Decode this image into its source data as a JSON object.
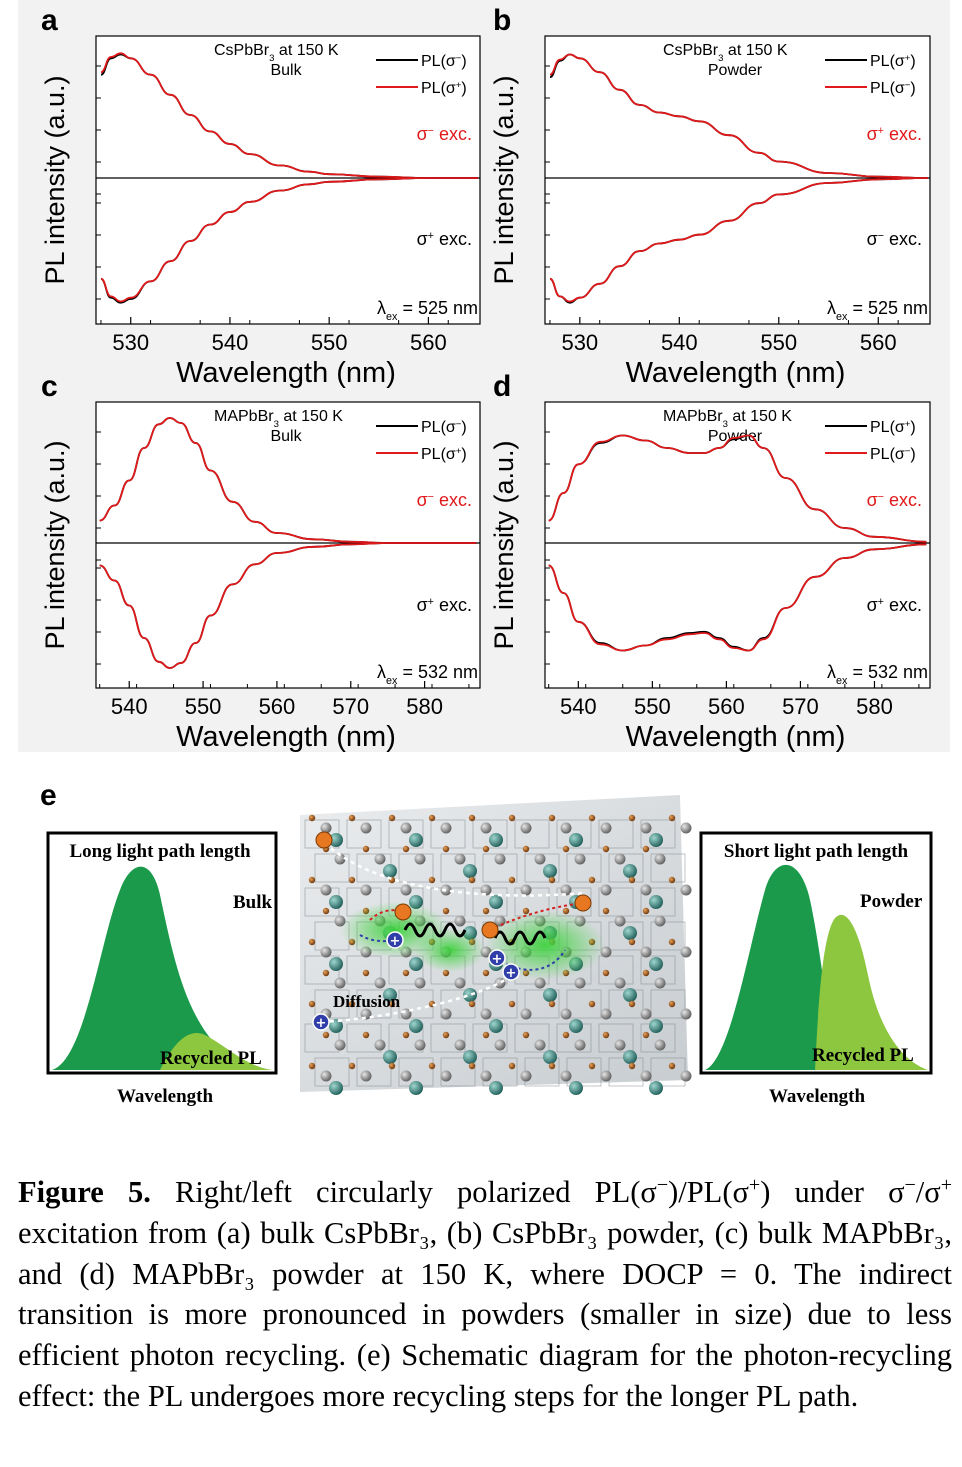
{
  "panels": [
    {
      "letter": "a",
      "ylabel": "PL intensity (a.u.)",
      "xlabel": "Wavelength (nm)",
      "xticks": [
        "530",
        "540",
        "550",
        "560"
      ],
      "sample_line1": "CsPbBr",
      "sample_sub": "3",
      "sample_line1_tail": " at 150 K",
      "sample_line2": "Bulk",
      "legend": [
        {
          "text": "PL(σ",
          "sup": "−",
          "tail": ")",
          "color": "#000000"
        },
        {
          "text": "PL(σ",
          "sup": "+",
          "tail": ")",
          "color": "#e0191b"
        }
      ],
      "top_exc": {
        "sym": "σ",
        "sup": "−",
        "tail": " exc.",
        "color": "#e0191b"
      },
      "bottom_exc": {
        "sym": "σ",
        "sup": "+",
        "tail": " exc.",
        "color": "#000000"
      },
      "lambda": "= 525 nm"
    },
    {
      "letter": "b",
      "ylabel": "PL intensity (a.u.)",
      "xlabel": "Wavelength (nm)",
      "xticks": [
        "530",
        "540",
        "550",
        "560"
      ],
      "sample_line1": "CsPbBr",
      "sample_sub": "3",
      "sample_line1_tail": " at 150 K",
      "sample_line2": "Powder",
      "legend": [
        {
          "text": "PL(σ",
          "sup": "+",
          "tail": ")",
          "color": "#000000"
        },
        {
          "text": "PL(σ",
          "sup": "−",
          "tail": ")",
          "color": "#e0191b"
        }
      ],
      "top_exc": {
        "sym": "σ",
        "sup": "+",
        "tail": " exc.",
        "color": "#e0191b"
      },
      "bottom_exc": {
        "sym": "σ",
        "sup": "−",
        "tail": " exc.",
        "color": "#000000"
      },
      "lambda": "= 525 nm"
    },
    {
      "letter": "c",
      "ylabel": "PL intensity (a.u.)",
      "xlabel": "Wavelength (nm)",
      "xticks": [
        "540",
        "550",
        "560",
        "570",
        "580"
      ],
      "sample_line1": "MAPbBr",
      "sample_sub": "3",
      "sample_line1_tail": " at 150 K",
      "sample_line2": "Bulk",
      "legend": [
        {
          "text": "PL(σ",
          "sup": "−",
          "tail": ")",
          "color": "#000000"
        },
        {
          "text": "PL(σ",
          "sup": "+",
          "tail": ")",
          "color": "#e0191b"
        }
      ],
      "top_exc": {
        "sym": "σ",
        "sup": "−",
        "tail": " exc.",
        "color": "#e0191b"
      },
      "bottom_exc": {
        "sym": "σ",
        "sup": "+",
        "tail": " exc.",
        "color": "#000000"
      },
      "lambda": "= 532 nm"
    },
    {
      "letter": "d",
      "ylabel": "PL intensity (a.u.)",
      "xlabel": "Wavelength (nm)",
      "xticks": [
        "540",
        "550",
        "560",
        "570",
        "580"
      ],
      "sample_line1": "MAPbBr",
      "sample_sub": "3",
      "sample_line1_tail": " at 150 K",
      "sample_line2": "Powder",
      "legend": [
        {
          "text": "PL(σ",
          "sup": "+",
          "tail": ")",
          "color": "#000000"
        },
        {
          "text": "PL(σ",
          "sup": "−",
          "tail": ")",
          "color": "#e0191b"
        }
      ],
      "top_exc": {
        "sym": "σ",
        "sup": "−",
        "tail": " exc.",
        "color": "#e0191b"
      },
      "bottom_exc": {
        "sym": "σ",
        "sup": "+",
        "tail": " exc.",
        "color": "#000000"
      },
      "lambda": "= 532 nm"
    }
  ],
  "lambda_symbol": "λ",
  "lambda_sub": "ex",
  "panel_e": {
    "letter": "e",
    "left_box": {
      "title": "Long light path length",
      "sample": "Bulk",
      "recycled": "Recycled PL",
      "xlabel": "Wavelength"
    },
    "right_box": {
      "title": "Short light path length",
      "sample": "Powder",
      "recycled": "Recycled PL",
      "xlabel": "Wavelength"
    },
    "center_label": "Diffusion",
    "colors": {
      "dark_green": "#1a9a4a",
      "light_green": "#8dc63f",
      "electron": "#e87722",
      "hole": "#2f3ea8"
    }
  },
  "caption": {
    "label": "Figure 5.",
    "part1": " Right/left circularly polarized PL(σ",
    "sup1": "−",
    "part2": ")/PL(σ",
    "sup2": "+",
    "part3": ") under σ",
    "sup3": "−",
    "part4": "/σ",
    "sup4": "+",
    "part5": " excitation from (a) bulk CsPbBr₃, (b) CsPbBr₃ powder, (c) bulk MAPbBr₃, and (d) MAPbBr₃ powder at 150 K, where DOCP = 0. The indirect transition is more pronounced in powders (smaller in size) due to less efficient photon recycling. (e) Schematic diagram for the photon-recycling effect: the PL undergoes more recycling steps for the longer PL path."
  },
  "chart_data": [
    {
      "type": "line",
      "panel": "a",
      "xlabel": "Wavelength (nm)",
      "ylabel": "PL intensity (a.u.)",
      "xlim": [
        526.5,
        565
      ],
      "x": [
        527,
        528,
        529,
        530,
        532,
        534,
        536,
        538,
        540,
        542,
        545,
        548,
        550,
        555,
        560,
        565
      ],
      "series": [
        {
          "name": "PL(σ−) top",
          "values": [
            0.82,
            0.95,
            0.98,
            0.95,
            0.82,
            0.66,
            0.5,
            0.37,
            0.27,
            0.19,
            0.1,
            0.05,
            0.03,
            0.01,
            0.0,
            0.0
          ]
        },
        {
          "name": "PL(σ+) top",
          "values": [
            0.84,
            0.96,
            0.99,
            0.95,
            0.82,
            0.66,
            0.5,
            0.37,
            0.27,
            0.19,
            0.1,
            0.05,
            0.03,
            0.01,
            0.0,
            0.0
          ]
        },
        {
          "name": "PL(σ−) bottom",
          "values": [
            -0.8,
            -0.95,
            -0.99,
            -0.96,
            -0.82,
            -0.66,
            -0.5,
            -0.37,
            -0.27,
            -0.19,
            -0.1,
            -0.05,
            -0.03,
            -0.01,
            0.0,
            0.0
          ]
        },
        {
          "name": "PL(σ+) bottom",
          "values": [
            -0.8,
            -0.94,
            -0.98,
            -0.95,
            -0.82,
            -0.66,
            -0.5,
            -0.37,
            -0.27,
            -0.19,
            -0.1,
            -0.05,
            -0.03,
            -0.01,
            0.0,
            0.0
          ]
        }
      ]
    },
    {
      "type": "line",
      "panel": "b",
      "xlabel": "Wavelength (nm)",
      "ylabel": "PL intensity (a.u.)",
      "xlim": [
        526.5,
        565
      ],
      "x": [
        527,
        528,
        529,
        530,
        532,
        534,
        536,
        538,
        540,
        542,
        545,
        548,
        550,
        555,
        560,
        565
      ],
      "series": [
        {
          "name": "PL(σ+) top",
          "values": [
            0.8,
            0.93,
            0.98,
            0.95,
            0.84,
            0.7,
            0.58,
            0.52,
            0.49,
            0.45,
            0.34,
            0.2,
            0.13,
            0.04,
            0.01,
            0.0
          ]
        },
        {
          "name": "PL(σ−) top",
          "values": [
            0.82,
            0.94,
            0.98,
            0.95,
            0.84,
            0.7,
            0.58,
            0.52,
            0.49,
            0.45,
            0.34,
            0.2,
            0.13,
            0.04,
            0.01,
            0.0
          ]
        },
        {
          "name": "PL(σ+) bottom",
          "values": [
            -0.8,
            -0.94,
            -0.99,
            -0.95,
            -0.84,
            -0.7,
            -0.58,
            -0.52,
            -0.49,
            -0.45,
            -0.34,
            -0.2,
            -0.13,
            -0.04,
            -0.01,
            0.0
          ]
        },
        {
          "name": "PL(σ−) bottom",
          "values": [
            -0.8,
            -0.94,
            -0.98,
            -0.95,
            -0.84,
            -0.7,
            -0.58,
            -0.52,
            -0.49,
            -0.45,
            -0.34,
            -0.2,
            -0.13,
            -0.04,
            -0.01,
            0.0
          ]
        }
      ]
    },
    {
      "type": "line",
      "panel": "c",
      "xlabel": "Wavelength (nm)",
      "ylabel": "PL intensity (a.u.)",
      "xlim": [
        535.5,
        587.5
      ],
      "x": [
        536,
        538,
        540,
        542,
        544,
        545.5,
        547,
        549,
        551,
        554,
        557,
        560,
        565,
        570,
        575,
        580,
        587
      ],
      "series": [
        {
          "name": "PL(σ−) top",
          "values": [
            0.18,
            0.3,
            0.5,
            0.76,
            0.95,
            1.0,
            0.96,
            0.8,
            0.58,
            0.33,
            0.17,
            0.08,
            0.03,
            0.01,
            0.0,
            0.0,
            0.0
          ]
        },
        {
          "name": "PL(σ+) top",
          "values": [
            0.18,
            0.3,
            0.5,
            0.76,
            0.95,
            1.0,
            0.96,
            0.8,
            0.58,
            0.33,
            0.17,
            0.08,
            0.03,
            0.01,
            0.0,
            0.0,
            0.0
          ]
        },
        {
          "name": "PL(σ−) bottom",
          "values": [
            -0.18,
            -0.3,
            -0.5,
            -0.76,
            -0.95,
            -1.0,
            -0.96,
            -0.8,
            -0.58,
            -0.33,
            -0.17,
            -0.08,
            -0.03,
            -0.01,
            0.0,
            0.0,
            0.0
          ]
        },
        {
          "name": "PL(σ+) bottom",
          "values": [
            -0.18,
            -0.3,
            -0.5,
            -0.76,
            -0.95,
            -1.0,
            -0.96,
            -0.8,
            -0.58,
            -0.33,
            -0.17,
            -0.08,
            -0.03,
            -0.01,
            0.0,
            0.0,
            0.0
          ]
        }
      ]
    },
    {
      "type": "line",
      "panel": "d",
      "xlabel": "Wavelength (nm)",
      "ylabel": "PL intensity (a.u.)",
      "xlim": [
        535.5,
        587.5
      ],
      "x": [
        536,
        538,
        540,
        543,
        546,
        549,
        552,
        555,
        557,
        559,
        561,
        563,
        565,
        568,
        572,
        576,
        580,
        587
      ],
      "series": [
        {
          "name": "PL(σ+) top",
          "values": [
            0.18,
            0.4,
            0.63,
            0.8,
            0.86,
            0.82,
            0.76,
            0.72,
            0.72,
            0.76,
            0.83,
            0.86,
            0.76,
            0.52,
            0.27,
            0.12,
            0.05,
            0.01
          ]
        },
        {
          "name": "PL(σ−) top",
          "values": [
            0.18,
            0.4,
            0.63,
            0.81,
            0.86,
            0.82,
            0.76,
            0.72,
            0.72,
            0.76,
            0.84,
            0.86,
            0.76,
            0.52,
            0.27,
            0.12,
            0.05,
            0.01
          ]
        },
        {
          "name": "PL(σ+) bottom",
          "values": [
            -0.18,
            -0.4,
            -0.63,
            -0.8,
            -0.86,
            -0.82,
            -0.76,
            -0.72,
            -0.71,
            -0.76,
            -0.83,
            -0.86,
            -0.76,
            -0.52,
            -0.27,
            -0.12,
            -0.05,
            -0.01
          ]
        },
        {
          "name": "PL(σ−) bottom",
          "values": [
            -0.18,
            -0.4,
            -0.63,
            -0.81,
            -0.86,
            -0.82,
            -0.77,
            -0.73,
            -0.72,
            -0.77,
            -0.84,
            -0.86,
            -0.77,
            -0.52,
            -0.27,
            -0.12,
            -0.05,
            -0.01
          ]
        }
      ]
    }
  ]
}
